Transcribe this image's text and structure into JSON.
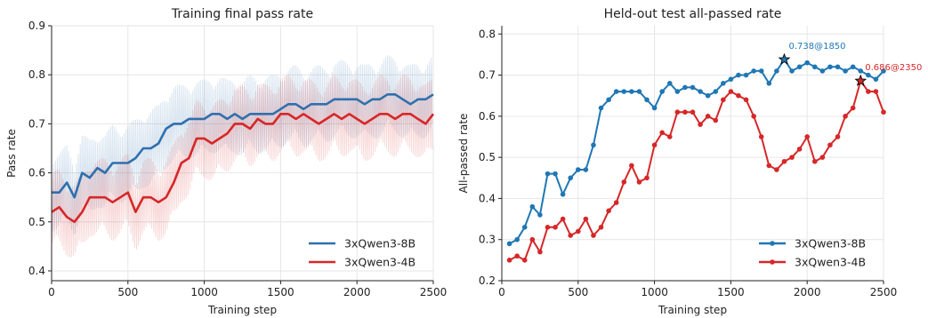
{
  "chart_data": [
    {
      "type": "line",
      "title": "Training final pass rate",
      "xlabel": "Training step",
      "ylabel": "Pass rate",
      "xlim": [
        0,
        2500
      ],
      "ylim": [
        0.38,
        0.9
      ],
      "xticks": [
        0,
        500,
        1000,
        1500,
        2000,
        2500
      ],
      "yticks": [
        0.4,
        0.5,
        0.6,
        0.7,
        0.8,
        0.9
      ],
      "grid": true,
      "legend_position": "bottom-right",
      "colors": {
        "3xQwen3-8B": "#2f6fad",
        "3xQwen3-4B": "#d62728"
      },
      "series": [
        {
          "name": "3xQwen3-8B",
          "x": [
            0,
            50,
            100,
            150,
            200,
            250,
            300,
            350,
            400,
            450,
            500,
            550,
            600,
            650,
            700,
            750,
            800,
            850,
            900,
            950,
            1000,
            1050,
            1100,
            1150,
            1200,
            1250,
            1300,
            1350,
            1400,
            1450,
            1500,
            1550,
            1600,
            1650,
            1700,
            1750,
            1800,
            1850,
            1900,
            1950,
            2000,
            2050,
            2100,
            2150,
            2200,
            2250,
            2300,
            2350,
            2400,
            2450,
            2500
          ],
          "values": [
            0.56,
            0.56,
            0.58,
            0.55,
            0.6,
            0.59,
            0.61,
            0.6,
            0.62,
            0.62,
            0.62,
            0.63,
            0.65,
            0.65,
            0.66,
            0.69,
            0.7,
            0.7,
            0.71,
            0.71,
            0.71,
            0.72,
            0.72,
            0.71,
            0.72,
            0.71,
            0.72,
            0.72,
            0.72,
            0.72,
            0.73,
            0.74,
            0.74,
            0.73,
            0.74,
            0.74,
            0.74,
            0.75,
            0.75,
            0.75,
            0.75,
            0.74,
            0.75,
            0.75,
            0.76,
            0.76,
            0.75,
            0.74,
            0.75,
            0.75,
            0.76
          ]
        },
        {
          "name": "3xQwen3-4B",
          "x": [
            0,
            50,
            100,
            150,
            200,
            250,
            300,
            350,
            400,
            450,
            500,
            550,
            600,
            650,
            700,
            750,
            800,
            850,
            900,
            950,
            1000,
            1050,
            1100,
            1150,
            1200,
            1250,
            1300,
            1350,
            1400,
            1450,
            1500,
            1550,
            1600,
            1650,
            1700,
            1750,
            1800,
            1850,
            1900,
            1950,
            2000,
            2050,
            2100,
            2150,
            2200,
            2250,
            2300,
            2350,
            2400,
            2450,
            2500
          ],
          "values": [
            0.52,
            0.53,
            0.51,
            0.5,
            0.52,
            0.55,
            0.55,
            0.55,
            0.54,
            0.55,
            0.56,
            0.52,
            0.55,
            0.55,
            0.54,
            0.55,
            0.58,
            0.62,
            0.63,
            0.67,
            0.67,
            0.66,
            0.67,
            0.68,
            0.7,
            0.7,
            0.69,
            0.71,
            0.7,
            0.7,
            0.72,
            0.72,
            0.71,
            0.72,
            0.71,
            0.7,
            0.71,
            0.72,
            0.71,
            0.72,
            0.71,
            0.7,
            0.71,
            0.72,
            0.72,
            0.71,
            0.72,
            0.72,
            0.71,
            0.7,
            0.72
          ]
        }
      ]
    },
    {
      "type": "line",
      "title": "Held-out test all-passed rate",
      "xlabel": "Training step",
      "ylabel": "All-passed rate",
      "xlim": [
        0,
        2500
      ],
      "ylim": [
        0.2,
        0.82
      ],
      "xticks": [
        0,
        500,
        1000,
        1500,
        2000,
        2500
      ],
      "yticks": [
        0.2,
        0.3,
        0.4,
        0.5,
        0.6,
        0.7,
        0.8
      ],
      "grid": true,
      "legend_position": "bottom-right",
      "colors": {
        "3xQwen3-8B": "#1f77b4",
        "3xQwen3-4B": "#d62728"
      },
      "annotations": [
        {
          "text": "0.738@1850",
          "x": 1850,
          "y": 0.738,
          "series": "3xQwen3-8B",
          "color": "#1f77b4"
        },
        {
          "text": "0.686@2350",
          "x": 2350,
          "y": 0.686,
          "series": "3xQwen3-4B",
          "color": "#d62728"
        }
      ],
      "series": [
        {
          "name": "3xQwen3-8B",
          "x": [
            50,
            100,
            150,
            200,
            250,
            300,
            350,
            400,
            450,
            500,
            550,
            600,
            650,
            700,
            750,
            800,
            850,
            900,
            950,
            1000,
            1050,
            1100,
            1150,
            1200,
            1250,
            1300,
            1350,
            1400,
            1450,
            1500,
            1550,
            1600,
            1650,
            1700,
            1750,
            1800,
            1850,
            1900,
            1950,
            2000,
            2050,
            2100,
            2150,
            2200,
            2250,
            2300,
            2350,
            2400,
            2450,
            2500
          ],
          "values": [
            0.29,
            0.3,
            0.33,
            0.38,
            0.36,
            0.46,
            0.46,
            0.41,
            0.45,
            0.47,
            0.47,
            0.53,
            0.62,
            0.64,
            0.66,
            0.66,
            0.66,
            0.66,
            0.64,
            0.62,
            0.66,
            0.68,
            0.66,
            0.67,
            0.67,
            0.66,
            0.65,
            0.66,
            0.68,
            0.69,
            0.7,
            0.7,
            0.71,
            0.71,
            0.68,
            0.71,
            0.738,
            0.71,
            0.72,
            0.73,
            0.72,
            0.71,
            0.72,
            0.72,
            0.71,
            0.72,
            0.71,
            0.7,
            0.69,
            0.71
          ]
        },
        {
          "name": "3xQwen3-4B",
          "x": [
            50,
            100,
            150,
            200,
            250,
            300,
            350,
            400,
            450,
            500,
            550,
            600,
            650,
            700,
            750,
            800,
            850,
            900,
            950,
            1000,
            1050,
            1100,
            1150,
            1200,
            1250,
            1300,
            1350,
            1400,
            1450,
            1500,
            1550,
            1600,
            1650,
            1700,
            1750,
            1800,
            1850,
            1900,
            1950,
            2000,
            2050,
            2100,
            2150,
            2200,
            2250,
            2300,
            2350,
            2400,
            2450,
            2500
          ],
          "values": [
            0.25,
            0.26,
            0.25,
            0.3,
            0.27,
            0.33,
            0.33,
            0.35,
            0.31,
            0.32,
            0.35,
            0.31,
            0.33,
            0.37,
            0.39,
            0.44,
            0.48,
            0.44,
            0.45,
            0.53,
            0.56,
            0.55,
            0.61,
            0.61,
            0.61,
            0.58,
            0.6,
            0.59,
            0.64,
            0.66,
            0.65,
            0.64,
            0.6,
            0.55,
            0.48,
            0.47,
            0.49,
            0.5,
            0.52,
            0.55,
            0.49,
            0.5,
            0.53,
            0.55,
            0.6,
            0.62,
            0.686,
            0.66,
            0.66,
            0.61
          ]
        }
      ]
    }
  ]
}
